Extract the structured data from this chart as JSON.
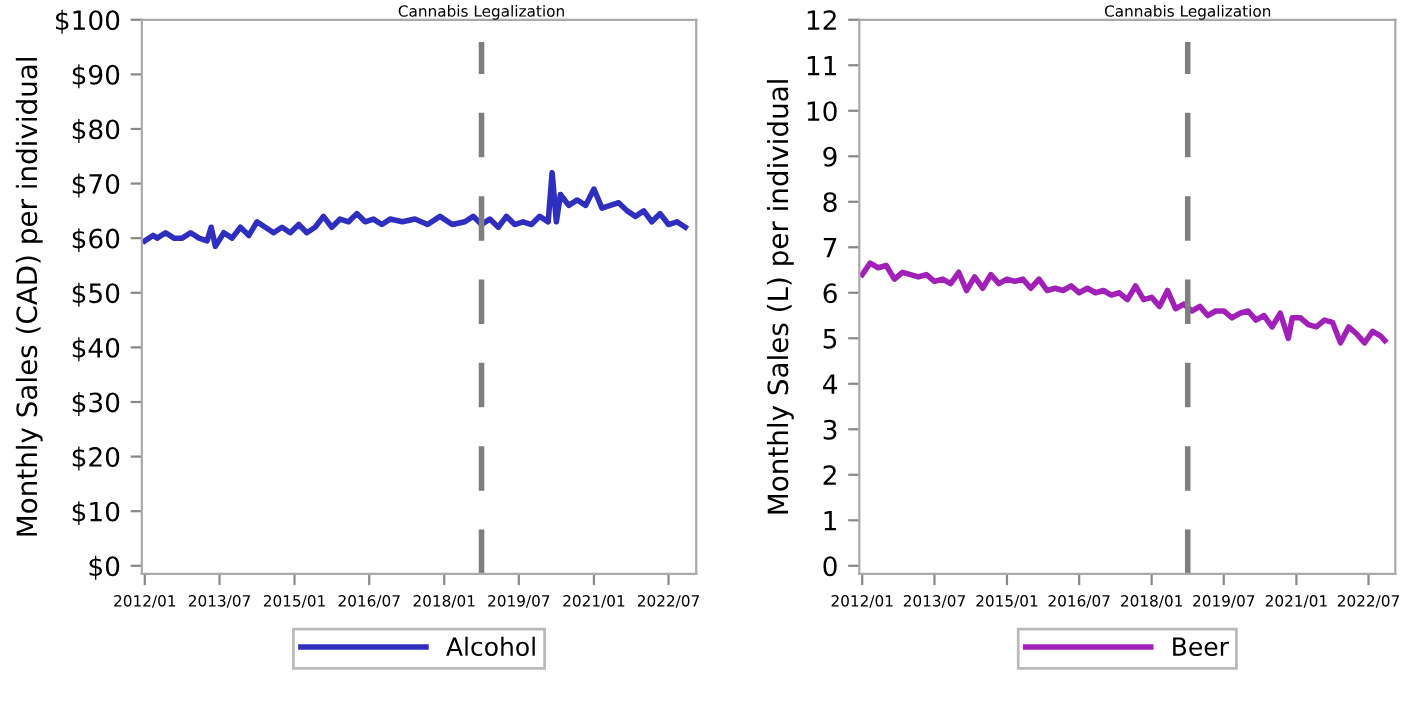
{
  "chart_data": [
    {
      "type": "line",
      "ylabel": "Monthly Sales (CAD) per individual",
      "legend": "bottom",
      "grid": false,
      "marker": "none",
      "line_style": "solid",
      "xlim": [
        "2011-12-10",
        "2023-01-20"
      ],
      "ylim": [
        -1.5,
        100
      ],
      "xticks": [
        {
          "value": "2012-01",
          "label": "2012/01"
        },
        {
          "value": "2013-07",
          "label": "2013/07"
        },
        {
          "value": "2015-01",
          "label": "2015/01"
        },
        {
          "value": "2016-07",
          "label": "2016/07"
        },
        {
          "value": "2018-01",
          "label": "2018/01"
        },
        {
          "value": "2019-07",
          "label": "2019/07"
        },
        {
          "value": "2021-01",
          "label": "2021/01"
        },
        {
          "value": "2022-07",
          "label": "2022/07"
        }
      ],
      "yticks": [
        {
          "value": 0,
          "label": "$0"
        },
        {
          "value": 10,
          "label": "$10"
        },
        {
          "value": 20,
          "label": "$20"
        },
        {
          "value": 30,
          "label": "$30"
        },
        {
          "value": 40,
          "label": "$40"
        },
        {
          "value": 50,
          "label": "$50"
        },
        {
          "value": 60,
          "label": "$60"
        },
        {
          "value": 70,
          "label": "$70"
        },
        {
          "value": 80,
          "label": "$80"
        },
        {
          "value": 90,
          "label": "$90"
        },
        {
          "value": 100,
          "label": "$100"
        }
      ],
      "ref_lines": [
        {
          "axis": "x",
          "value": "2018-10",
          "label": "Cannabis Legalization",
          "color": "#7f7f7f",
          "line_style": "dashed"
        }
      ],
      "series": [
        {
          "name": "Alcohol",
          "color": "#2f2fbf",
          "x": [
            "2012-01",
            "2012-03",
            "2012-04",
            "2012-06",
            "2012-08",
            "2012-10",
            "2012-12",
            "2013-02",
            "2013-04",
            "2013-05",
            "2013-06",
            "2013-08",
            "2013-10",
            "2013-12",
            "2014-02",
            "2014-04",
            "2014-06",
            "2014-08",
            "2014-10",
            "2014-12",
            "2015-02",
            "2015-04",
            "2015-06",
            "2015-08",
            "2015-10",
            "2015-12",
            "2016-02",
            "2016-04",
            "2016-06",
            "2016-08",
            "2016-10",
            "2016-12",
            "2017-03",
            "2017-06",
            "2017-09",
            "2017-12",
            "2018-03",
            "2018-06",
            "2018-08",
            "2018-10",
            "2018-12",
            "2019-02",
            "2019-04",
            "2019-06",
            "2019-08",
            "2019-10",
            "2019-12",
            "2020-02",
            "2020-03",
            "2020-04",
            "2020-05",
            "2020-07",
            "2020-09",
            "2020-11",
            "2021-01",
            "2021-03",
            "2021-05",
            "2021-07",
            "2021-09",
            "2021-11",
            "2022-01",
            "2022-03",
            "2022-05",
            "2022-07",
            "2022-09",
            "2022-11"
          ],
          "values": [
            59.5,
            60.5,
            60,
            61,
            60,
            60,
            61,
            60,
            59.5,
            62,
            58.5,
            61,
            60,
            62,
            60.5,
            63,
            62,
            61,
            62,
            61,
            62.5,
            61,
            62,
            64,
            62,
            63.5,
            63,
            64.5,
            63,
            63.5,
            62.5,
            63.5,
            63,
            63.5,
            62.5,
            64,
            62.5,
            63,
            64,
            62.5,
            63.5,
            62,
            64,
            62.5,
            63,
            62.5,
            64,
            63,
            72,
            63,
            68,
            66,
            67,
            66,
            69,
            65.5,
            66,
            66.5,
            65,
            64,
            65,
            63,
            64.5,
            62.5,
            63,
            62
          ]
        }
      ]
    },
    {
      "type": "line",
      "ylabel": "Monthly Sales (L) per individual",
      "legend": "bottom",
      "grid": false,
      "marker": "none",
      "line_style": "solid",
      "xlim": [
        "2011-12-10",
        "2023-01-20"
      ],
      "ylim": [
        -0.18,
        12
      ],
      "xticks": [
        {
          "value": "2012-01",
          "label": "2012/01"
        },
        {
          "value": "2013-07",
          "label": "2013/07"
        },
        {
          "value": "2015-01",
          "label": "2015/01"
        },
        {
          "value": "2016-07",
          "label": "2016/07"
        },
        {
          "value": "2018-01",
          "label": "2018/01"
        },
        {
          "value": "2019-07",
          "label": "2019/07"
        },
        {
          "value": "2021-01",
          "label": "2021/01"
        },
        {
          "value": "2022-07",
          "label": "2022/07"
        }
      ],
      "yticks": [
        0,
        1,
        2,
        3,
        4,
        5,
        6,
        7,
        8,
        9,
        10,
        11,
        12
      ],
      "ref_lines": [
        {
          "axis": "x",
          "value": "2018-10",
          "label": "Cannabis Legalization",
          "color": "#7f7f7f",
          "line_style": "dashed"
        }
      ],
      "series": [
        {
          "name": "Beer",
          "color": "#a020b8",
          "x": [
            "2012-01",
            "2012-03",
            "2012-05",
            "2012-07",
            "2012-09",
            "2012-11",
            "2013-01",
            "2013-03",
            "2013-05",
            "2013-07",
            "2013-09",
            "2013-11",
            "2014-01",
            "2014-03",
            "2014-05",
            "2014-07",
            "2014-09",
            "2014-11",
            "2015-01",
            "2015-03",
            "2015-05",
            "2015-07",
            "2015-09",
            "2015-11",
            "2016-01",
            "2016-03",
            "2016-05",
            "2016-07",
            "2016-09",
            "2016-11",
            "2017-01",
            "2017-03",
            "2017-05",
            "2017-07",
            "2017-09",
            "2017-11",
            "2018-01",
            "2018-03",
            "2018-05",
            "2018-07",
            "2018-09",
            "2018-11",
            "2019-01",
            "2019-03",
            "2019-05",
            "2019-07",
            "2019-09",
            "2019-11",
            "2020-01",
            "2020-03",
            "2020-05",
            "2020-07",
            "2020-09",
            "2020-11",
            "2020-12",
            "2021-02",
            "2021-04",
            "2021-06",
            "2021-08",
            "2021-10",
            "2021-12",
            "2022-02",
            "2022-04",
            "2022-06",
            "2022-08",
            "2022-10",
            "2022-11"
          ],
          "values": [
            6.4,
            6.65,
            6.55,
            6.6,
            6.3,
            6.45,
            6.4,
            6.35,
            6.4,
            6.25,
            6.3,
            6.2,
            6.45,
            6.05,
            6.35,
            6.1,
            6.4,
            6.2,
            6.3,
            6.25,
            6.3,
            6.1,
            6.3,
            6.05,
            6.1,
            6.05,
            6.15,
            6.0,
            6.1,
            6.0,
            6.05,
            5.95,
            6.0,
            5.85,
            6.15,
            5.85,
            5.9,
            5.7,
            6.05,
            5.65,
            5.75,
            5.6,
            5.7,
            5.5,
            5.6,
            5.6,
            5.45,
            5.55,
            5.6,
            5.4,
            5.5,
            5.25,
            5.55,
            5.0,
            5.45,
            5.45,
            5.3,
            5.25,
            5.4,
            5.35,
            4.9,
            5.25,
            5.1,
            4.9,
            5.15,
            5.05,
            4.95
          ]
        }
      ]
    }
  ]
}
